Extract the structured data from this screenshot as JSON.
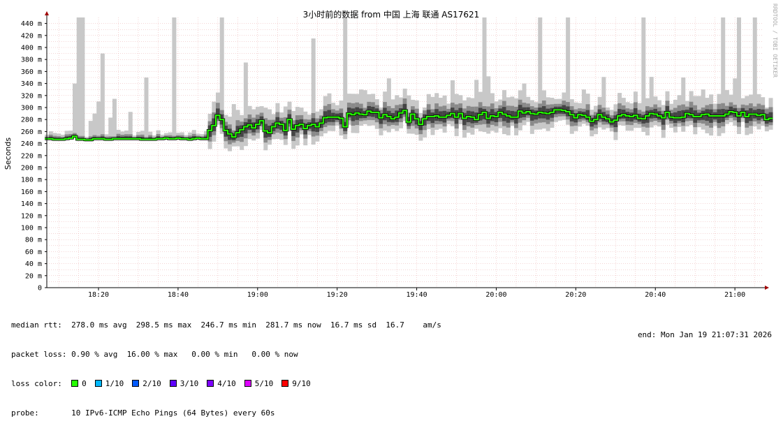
{
  "chart_data": {
    "type": "line",
    "title": "3小时前的数据 from  中国 上海 联通 AS17621",
    "ylabel": "Seconds",
    "watermark": "RRDTOOL / TOBI OETIKER",
    "ylim": [
      0,
      450
    ],
    "y_ticks": [
      0,
      20,
      40,
      60,
      80,
      100,
      120,
      140,
      160,
      180,
      200,
      220,
      240,
      260,
      280,
      300,
      320,
      340,
      360,
      380,
      400,
      420,
      440
    ],
    "y_tick_labels": [
      "0",
      "20 m",
      "40 m",
      "60 m",
      "80 m",
      "100 m",
      "120 m",
      "140 m",
      "160 m",
      "180 m",
      "200 m",
      "220 m",
      "240 m",
      "260 m",
      "280 m",
      "300 m",
      "320 m",
      "340 m",
      "360 m",
      "380 m",
      "400 m",
      "420 m",
      "440 m"
    ],
    "y_unit": "ms",
    "x_tick_labels": [
      "18:20",
      "18:40",
      "19:00",
      "19:20",
      "19:40",
      "20:00",
      "20:20",
      "20:40",
      "21:00"
    ],
    "x_range": [
      "18:07",
      "21:07"
    ],
    "grid": true,
    "series_median": {
      "x_start": "18:07",
      "step_minutes": 1,
      "values": [
        248,
        248,
        247,
        247,
        247,
        248,
        249,
        252,
        247,
        247,
        246,
        246,
        248,
        248,
        248,
        247,
        247,
        248,
        248,
        248,
        248,
        248,
        248,
        248,
        247,
        247,
        247,
        247,
        248,
        248,
        249,
        248,
        248,
        249,
        248,
        248,
        247,
        248,
        249,
        248,
        248,
        262,
        270,
        287,
        280,
        262,
        256,
        251,
        258,
        263,
        268,
        271,
        266,
        272,
        278,
        261,
        258,
        268,
        274,
        272,
        262,
        280,
        264,
        270,
        272,
        265,
        270,
        272,
        268,
        274,
        283,
        284,
        284,
        284,
        282,
        268,
        290,
        288,
        291,
        289,
        288,
        294,
        292,
        292,
        283,
        288,
        285,
        281,
        284,
        291,
        295,
        276,
        289,
        281,
        272,
        281,
        285,
        285,
        286,
        284,
        284,
        287,
        290,
        284,
        290,
        282,
        285,
        284,
        280,
        288,
        292,
        282,
        286,
        285,
        292,
        289,
        286,
        284,
        284,
        294,
        291,
        293,
        290,
        289,
        292,
        291,
        290,
        292,
        296,
        296,
        295,
        293,
        288,
        283,
        288,
        287,
        284,
        277,
        280,
        288,
        284,
        281,
        276,
        279,
        286,
        288,
        286,
        285,
        287,
        282,
        281,
        286,
        290,
        289,
        286,
        283,
        292,
        284,
        283,
        283,
        284,
        290,
        288,
        285,
        285,
        288,
        289,
        286,
        286,
        286,
        286,
        289,
        293,
        292,
        286,
        292,
        285,
        289,
        289,
        287,
        288,
        280,
        282
      ],
      "loss_at_median": "0"
    },
    "loss_colors": [
      {
        "label": "0",
        "color": "#26ff00"
      },
      {
        "label": "1/10",
        "color": "#00b8ff"
      },
      {
        "label": "2/10",
        "color": "#0059ff"
      },
      {
        "label": "3/10",
        "color": "#5e00ff"
      },
      {
        "label": "4/10",
        "color": "#7e00ff"
      },
      {
        "label": "5/10",
        "color": "#dd00ff"
      },
      {
        "label": "9/10",
        "color": "#ff0000"
      }
    ],
    "colors": {
      "smoke_light": "#c8c8c8",
      "smoke_mid": "#8a8a8a",
      "smoke_dark": "#454545",
      "median": "#26ff00",
      "median_edge": "#000000",
      "grid": "#e8a8a8",
      "axis": "#000000",
      "arrow": "#a00000"
    }
  },
  "stats": {
    "median_rtt": "median rtt:  278.0 ms avg  298.5 ms max  246.7 ms min  281.7 ms now  16.7 ms sd  16.7    am/s",
    "packet_loss": "packet loss: 0.90 % avg  16.00 % max   0.00 % min   0.00 % now",
    "loss_color_label": "loss color:",
    "probe": "probe:       10 IPv6-ICMP Echo Pings (64 Bytes) every 60s",
    "end": "end: Mon Jan 19 21:07:31 2026"
  }
}
